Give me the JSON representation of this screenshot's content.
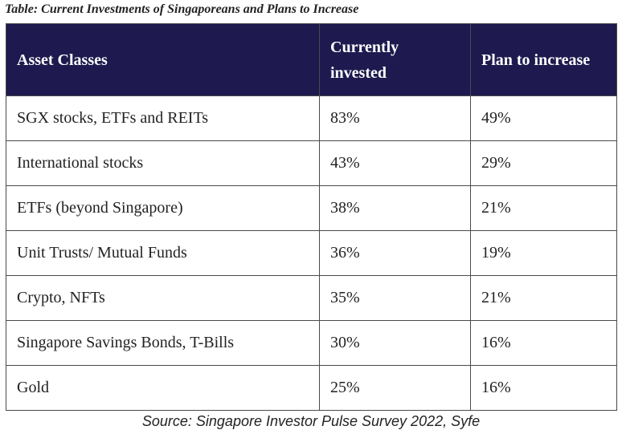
{
  "caption": "Table: Current Investments of Singaporeans and Plans to Increase",
  "header_color": "#1e1a4f",
  "columns": {
    "asset": "Asset Classes",
    "current_line1": "Currently",
    "current_line2": "invested",
    "plan": "Plan to increase"
  },
  "rows": [
    {
      "asset": "SGX stocks, ETFs and REITs",
      "current": "83%",
      "plan": "49%"
    },
    {
      "asset": "International stocks",
      "current": "43%",
      "plan": "29%"
    },
    {
      "asset": "ETFs (beyond Singapore)",
      "current": "38%",
      "plan": "21%"
    },
    {
      "asset": "Unit Trusts/ Mutual Funds",
      "current": "36%",
      "plan": "19%"
    },
    {
      "asset": "Crypto, NFTs",
      "current": "35%",
      "plan": "21%"
    },
    {
      "asset": "Singapore Savings Bonds, T-Bills",
      "current": "30%",
      "plan": "16%"
    },
    {
      "asset": "Gold",
      "current": "25%",
      "plan": "16%"
    }
  ],
  "source": "Source: Singapore Investor Pulse Survey 2022, Syfe"
}
